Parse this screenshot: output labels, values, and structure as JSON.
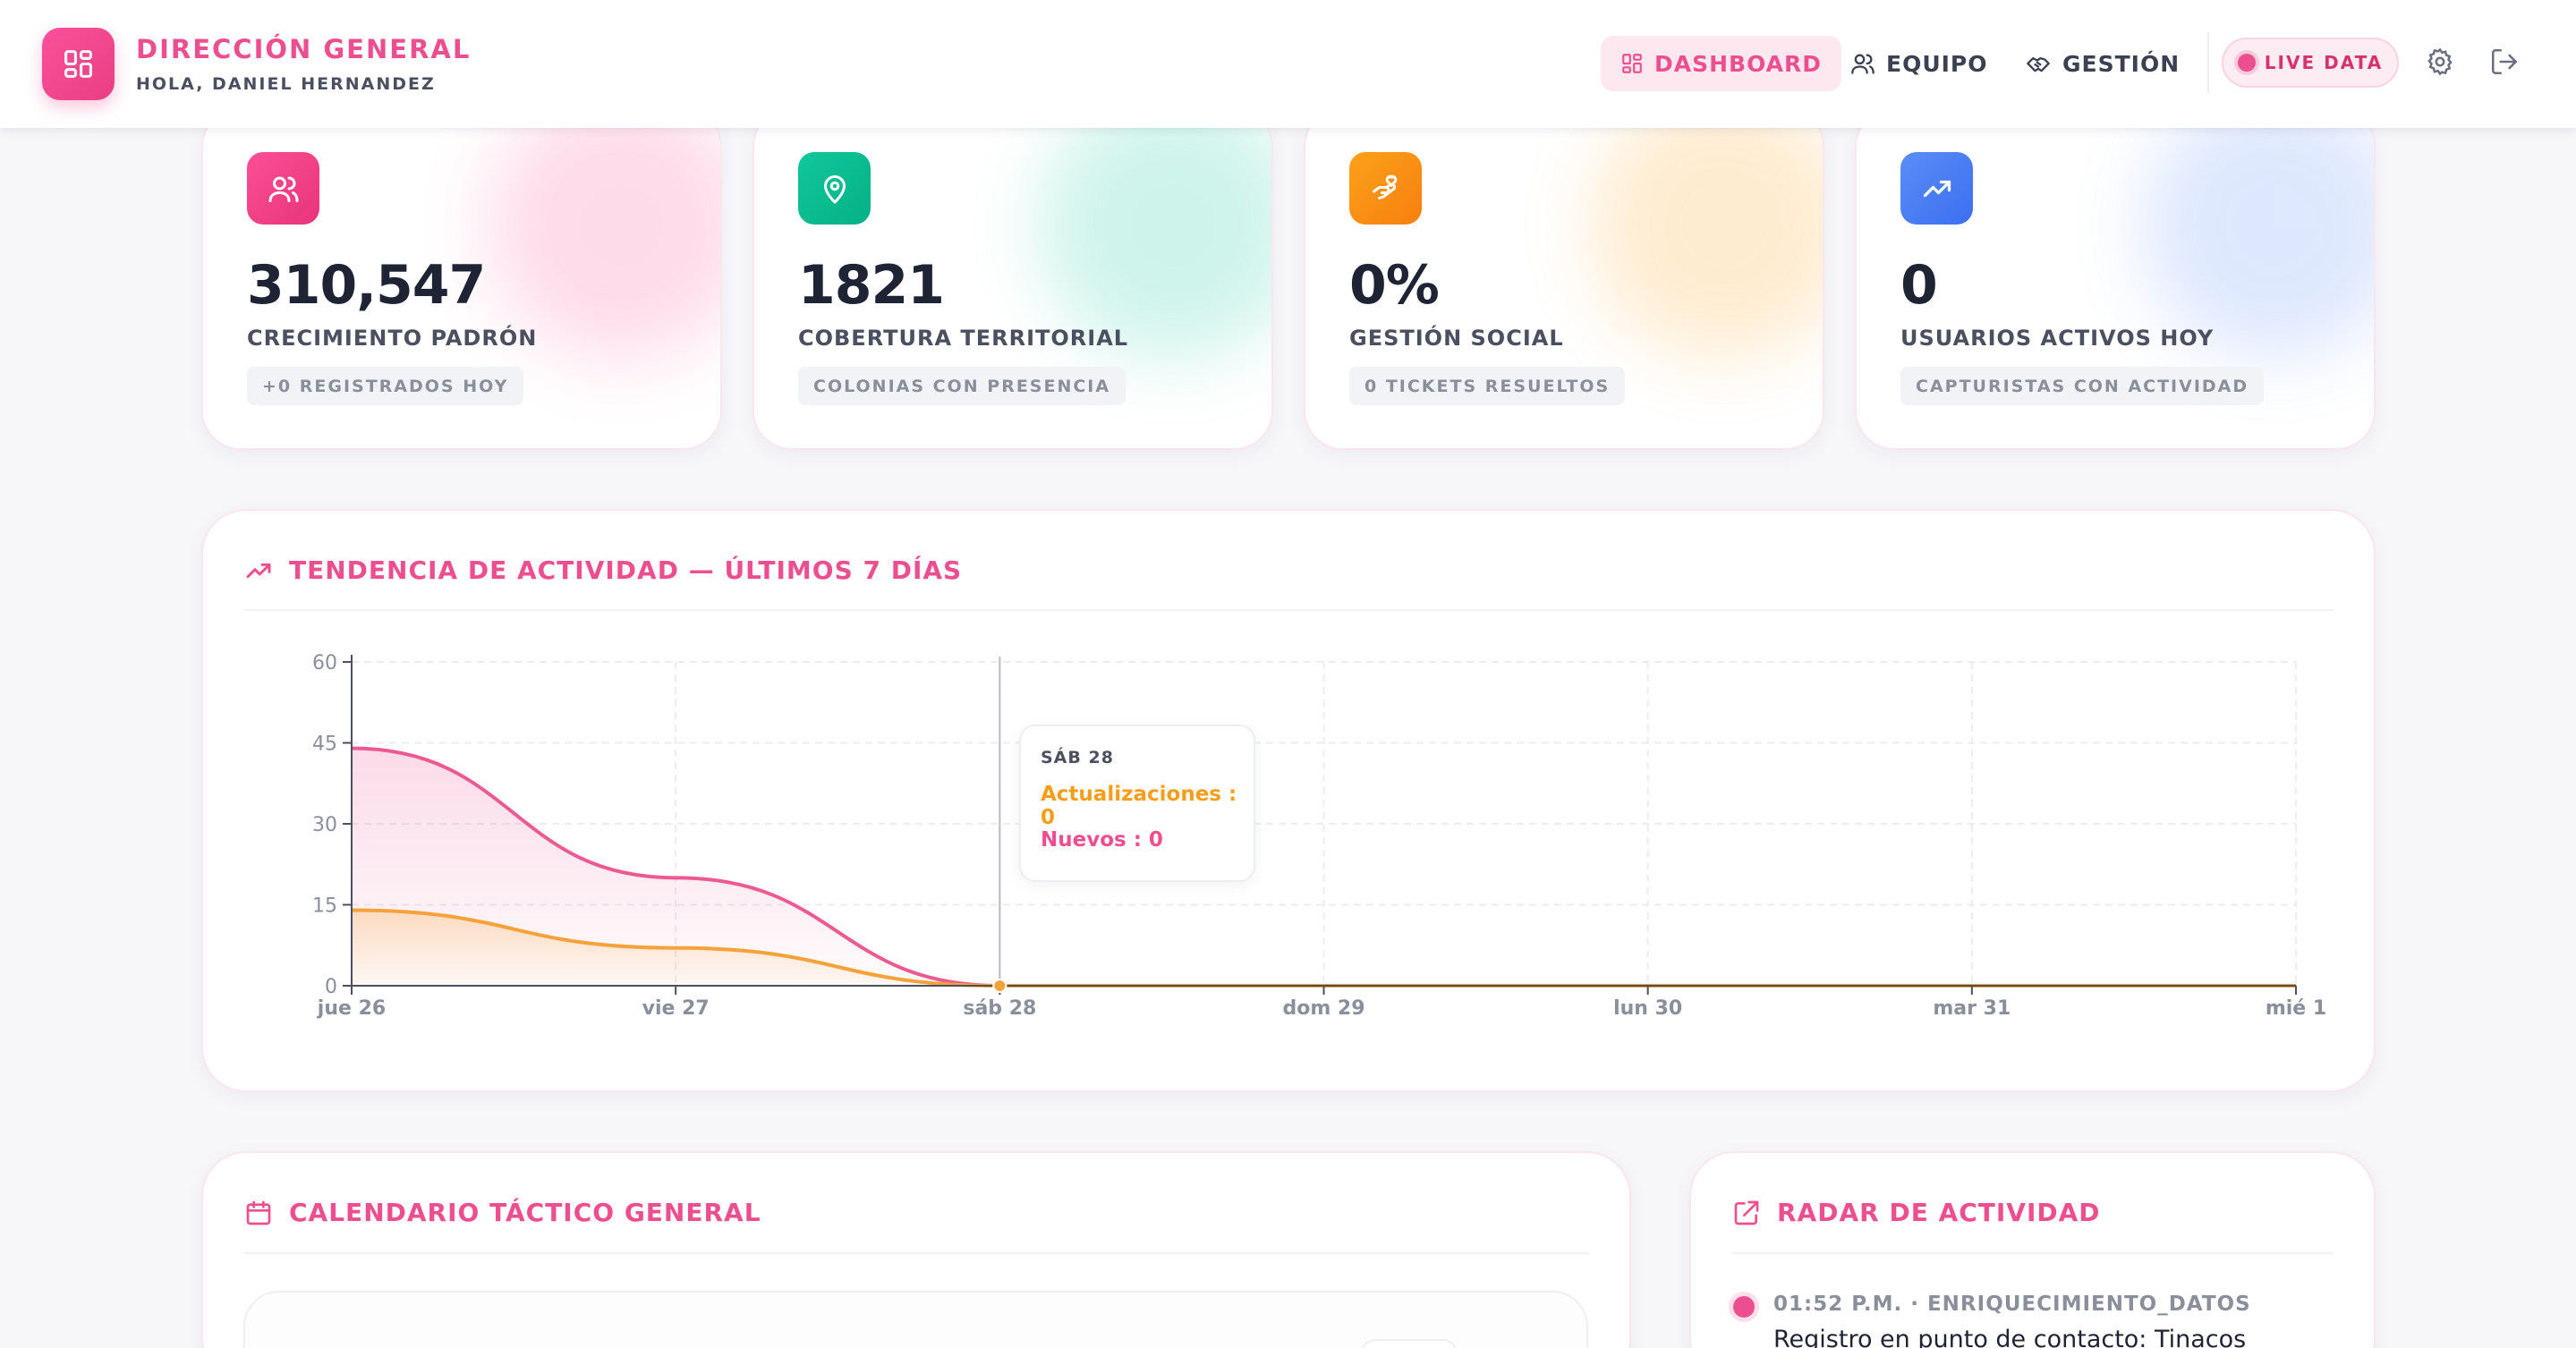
{
  "header": {
    "title": "DIRECCIÓN GENERAL",
    "subtitle": "HOLA, DANIEL HERNANDEZ",
    "nav": [
      {
        "label": "DASHBOARD",
        "icon": "dashboard-icon",
        "active": true
      },
      {
        "label": "EQUIPO",
        "icon": "users-icon",
        "active": false
      },
      {
        "label": "GESTIÓN",
        "icon": "handshake-icon",
        "active": false
      }
    ],
    "live_label": "LIVE DATA",
    "settings_icon": "gear-icon",
    "logout_icon": "logout-icon"
  },
  "stats": [
    {
      "value": "310,547",
      "label": "CRECIMIENTO PADRÓN",
      "badge": "+0 REGISTRADOS HOY",
      "icon": "users-icon",
      "color_from": "#fb4f95",
      "color_to": "#e8347a"
    },
    {
      "value": "1821",
      "label": "COBERTURA TERRITORIAL",
      "badge": "COLONIAS CON PRESENCIA",
      "icon": "map-pin-icon",
      "color_from": "#10c79b",
      "color_to": "#06b086"
    },
    {
      "value": "0%",
      "label": "GESTIÓN SOCIAL",
      "badge": "0 TICKETS RESUELTOS",
      "icon": "hand-heart-icon",
      "color_from": "#fba21a",
      "color_to": "#f77f0e"
    },
    {
      "value": "0",
      "label": "USUARIOS ACTIVOS HOY",
      "badge": "CAPTURISTAS CON ACTIVIDAD",
      "icon": "trending-up-icon",
      "color_from": "#5b8df7",
      "color_to": "#3b6ff0"
    }
  ],
  "trend": {
    "title": "TENDENCIA DE ACTIVIDAD — ÚLTIMOS 7 DÍAS",
    "tooltip": {
      "title": "SÁB 28",
      "line1": "Actualizaciones : 0",
      "line2": "Nuevos : 0"
    }
  },
  "chart_data": {
    "type": "area",
    "categories": [
      "jue 26",
      "vie 27",
      "sáb 28",
      "dom 29",
      "lun 30",
      "mar 31",
      "mié 1"
    ],
    "ylim": [
      0,
      60
    ],
    "yticks": [
      "0",
      "15",
      "30",
      "45",
      "60"
    ],
    "series": [
      {
        "name": "Nuevos",
        "color": "#ec5a93",
        "values": [
          44,
          20,
          0,
          0,
          0,
          0,
          0
        ]
      },
      {
        "name": "Actualizaciones",
        "color": "#f5a23a",
        "values": [
          14,
          7,
          0,
          0,
          0,
          0,
          0
        ]
      }
    ],
    "grid": true
  },
  "calendar": {
    "title": "CALENDARIO TÁCTICO GENERAL"
  },
  "radar": {
    "title": "RADAR DE ACTIVIDAD",
    "items": [
      {
        "meta": "01:52 P.M. · ENRIQUECIMIENTO_DATOS",
        "text": "Registro en punto de contacto: Tinacos"
      }
    ]
  }
}
